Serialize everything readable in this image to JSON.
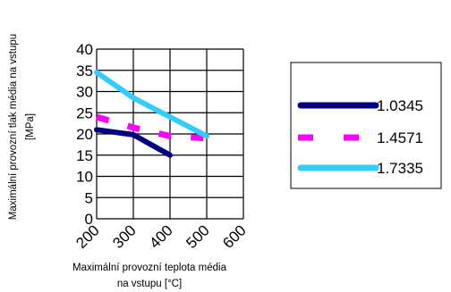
{
  "chart_data": {
    "type": "line",
    "title": "",
    "xlabel_lines": [
      "Maximální provozní teplota média",
      "na vstupu [°C]"
    ],
    "ylabel_lines": [
      "Maximální provozní tlak média na vstupu",
      "[MPa]"
    ],
    "xlim": [
      200,
      600
    ],
    "ylim": [
      0,
      40
    ],
    "x_ticks": [
      "200",
      "300",
      "400",
      "500",
      "600"
    ],
    "y_ticks": [
      "0",
      "5",
      "10",
      "15",
      "20",
      "25",
      "30",
      "35",
      "40"
    ],
    "grid": "horizontal+vertical",
    "legend_position": "right",
    "series": [
      {
        "name": "1.0345",
        "color": "#000080",
        "style": "solid",
        "x": [
          200,
          300,
          400
        ],
        "y": [
          21,
          19.8,
          15
        ]
      },
      {
        "name": "1.4571",
        "color": "#ff00ff",
        "style": "dashed",
        "x": [
          200,
          300,
          400,
          500
        ],
        "y": [
          24,
          21.5,
          19.5,
          19
        ]
      },
      {
        "name": "1.7335",
        "color": "#33ccff",
        "style": "solid",
        "x": [
          200,
          300,
          400,
          500
        ],
        "y": [
          34.5,
          28.5,
          24,
          19.5
        ]
      }
    ]
  }
}
